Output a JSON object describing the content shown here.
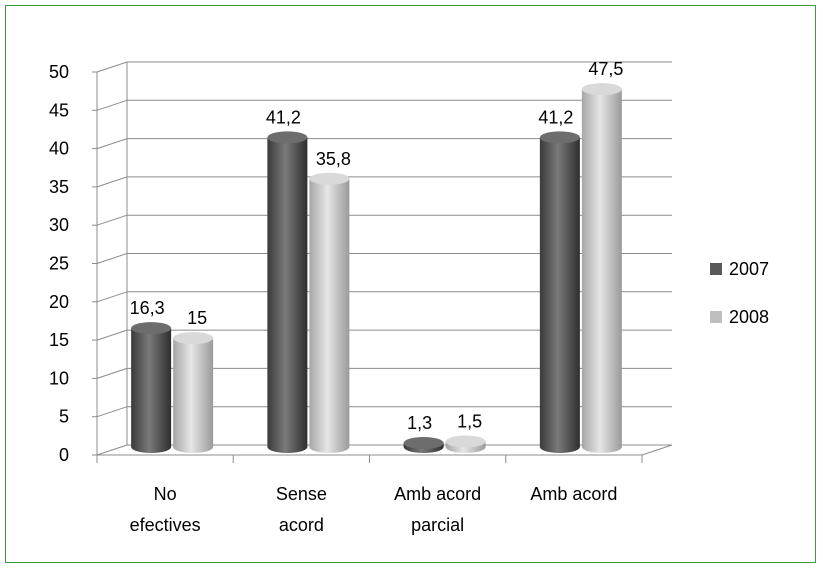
{
  "chart_data": {
    "type": "bar",
    "categories": [
      [
        "No",
        "efectives"
      ],
      [
        "Sense",
        "acord"
      ],
      [
        "Amb acord",
        "parcial"
      ],
      [
        "Amb acord"
      ]
    ],
    "series": [
      {
        "name": "2007",
        "values": [
          16.3,
          41.2,
          1.3,
          41.2
        ],
        "labels": [
          "16,3",
          "41,2",
          "1,3",
          "41,2"
        ],
        "color": "#595959"
      },
      {
        "name": "2008",
        "values": [
          15,
          35.8,
          1.5,
          47.5
        ],
        "labels": [
          "15",
          "35,8",
          "1,5",
          "47,5"
        ],
        "color": "#bfbfbf"
      }
    ],
    "y_ticks": [
      0,
      5,
      10,
      15,
      20,
      25,
      30,
      35,
      40,
      45,
      50
    ],
    "ylim": [
      0,
      50
    ],
    "grid": true,
    "legend_position": "right",
    "border_color": "#3f9a3f"
  }
}
